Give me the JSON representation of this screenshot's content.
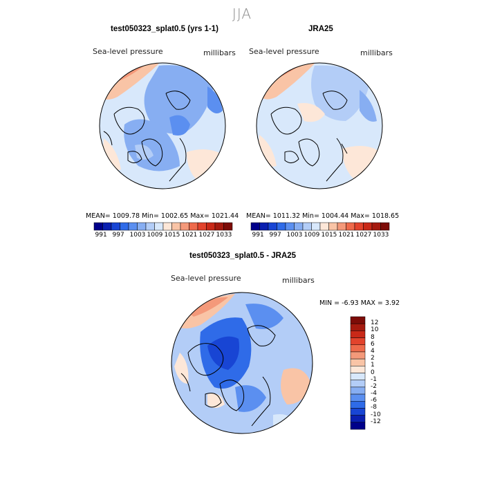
{
  "page": {
    "season": "JJA"
  },
  "colors": {
    "palette": [
      "#00008a",
      "#0a1fb0",
      "#1845d4",
      "#2f6be8",
      "#5b8ff0",
      "#87aef2",
      "#b3cdf7",
      "#d8e8fb",
      "#fde7d8",
      "#f9c4a6",
      "#f4997a",
      "#ee6a4b",
      "#e2432c",
      "#c92918",
      "#a51a0f",
      "#7d0c08"
    ],
    "land_outline": "#000000"
  },
  "panels": [
    {
      "id": "model",
      "title": "test050323_splat0.5 (yrs 1-1)",
      "field": "Sea-level pressure",
      "units": "millibars",
      "stats_text": "MEAN= 1009.78   Min= 1002.65   Max= 1021.44",
      "colorbar_ticks": [
        "991",
        "997",
        "1003",
        "1009",
        "1015",
        "1021",
        "1027",
        "1033"
      ]
    },
    {
      "id": "obs",
      "title": "JRA25",
      "field": "Sea-level pressure",
      "units": "millibars",
      "stats_text": "MEAN= 1011.32   Min= 1004.44   Max= 1018.65",
      "colorbar_ticks": [
        "991",
        "997",
        "1003",
        "1009",
        "1015",
        "1021",
        "1027",
        "1033"
      ]
    },
    {
      "id": "diff",
      "title": "test050323_splat0.5 - JRA25",
      "field": "Sea-level pressure",
      "units": "millibars",
      "minmax_text": "MIN =   -6.93 MAX =    3.92",
      "colorbar_ticks": [
        "12",
        "10",
        "8",
        "6",
        "4",
        "2",
        "1",
        "0",
        "-1",
        "-2",
        "-4",
        "-6",
        "-8",
        "-10",
        "-12"
      ]
    }
  ],
  "chart_data": [
    {
      "type": "heatmap",
      "projection": "north polar stereographic",
      "title": "test050323_splat0.5 (yrs 1-1)",
      "variable": "Sea-level pressure",
      "units": "millibars",
      "mean": 1009.78,
      "min": 1002.65,
      "max": 1021.44,
      "levels": [
        991,
        994,
        997,
        1000,
        1003,
        1006,
        1009,
        1012,
        1015,
        1018,
        1021,
        1024,
        1027,
        1030,
        1033
      ]
    },
    {
      "type": "heatmap",
      "projection": "north polar stereographic",
      "title": "JRA25",
      "variable": "Sea-level pressure",
      "units": "millibars",
      "mean": 1011.32,
      "min": 1004.44,
      "max": 1018.65,
      "levels": [
        991,
        994,
        997,
        1000,
        1003,
        1006,
        1009,
        1012,
        1015,
        1018,
        1021,
        1024,
        1027,
        1030,
        1033
      ]
    },
    {
      "type": "heatmap",
      "projection": "north polar stereographic",
      "title": "test050323_splat0.5 - JRA25",
      "variable": "Sea-level pressure",
      "units": "millibars",
      "min": -6.93,
      "max": 3.92,
      "levels": [
        -12,
        -10,
        -8,
        -6,
        -4,
        -2,
        -1,
        0,
        1,
        2,
        4,
        6,
        8,
        10,
        12
      ]
    }
  ]
}
